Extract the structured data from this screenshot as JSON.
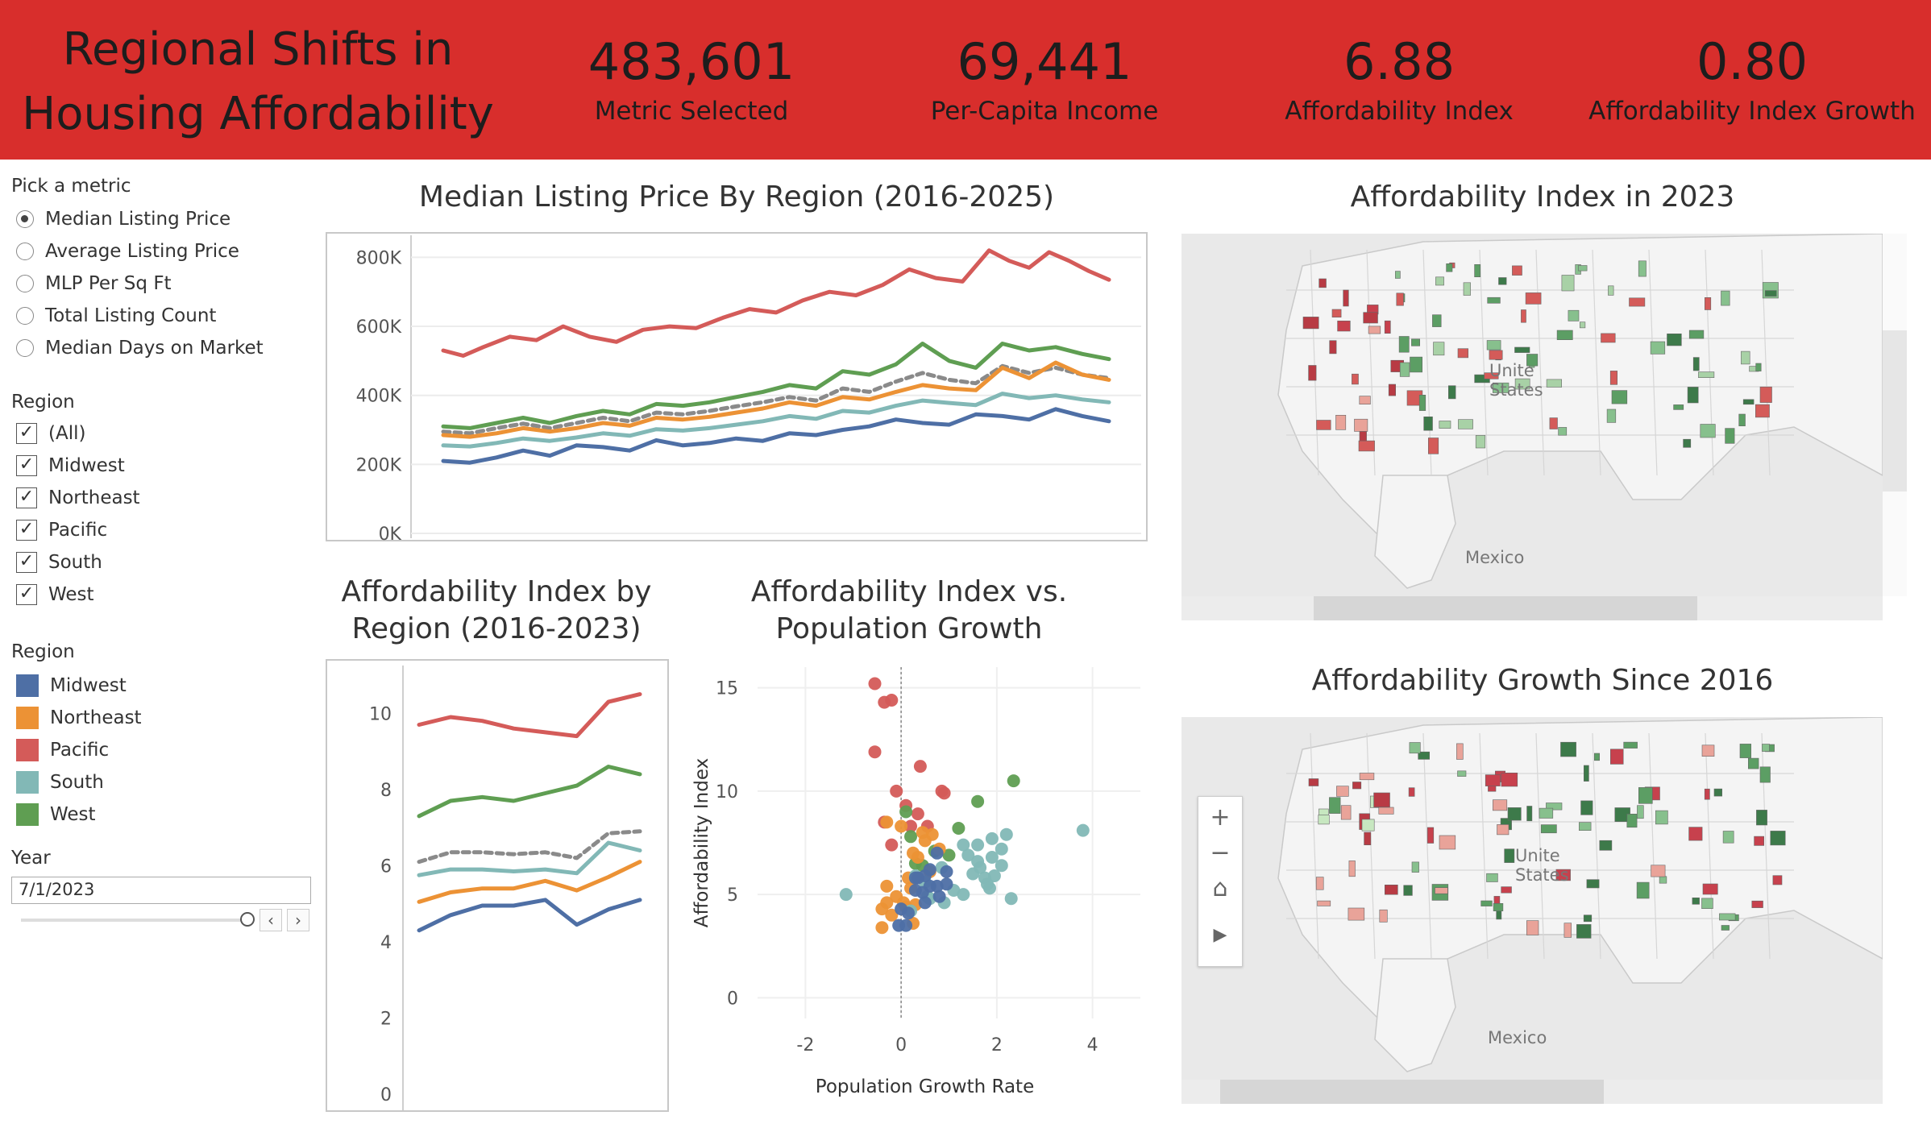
{
  "header": {
    "title": "Regional Shifts in Housing Affordability",
    "kpis": [
      {
        "value": "483,601",
        "label": "Metric Selected"
      },
      {
        "value": "69,441",
        "label": "Per-Capita Income"
      },
      {
        "value": "6.88",
        "label": "Affordability Index"
      },
      {
        "value": "0.80",
        "label": "Affordability Index Growth"
      }
    ]
  },
  "sidebar": {
    "metric_heading": "Pick a metric",
    "metrics": [
      "Median Listing Price",
      "Average Listing Price",
      "MLP Per Sq Ft",
      "Total Listing Count",
      "Median Days on Market"
    ],
    "selected_metric": "Median Listing Price",
    "region_filter_heading": "Region",
    "region_filter": [
      "(All)",
      "Midwest",
      "Northeast",
      "Pacific",
      "South",
      "West"
    ],
    "legend_heading": "Region",
    "legend": [
      {
        "name": "Midwest",
        "color": "#4e6fa5"
      },
      {
        "name": "Northeast",
        "color": "#ec9235"
      },
      {
        "name": "Pacific",
        "color": "#d45b59"
      },
      {
        "name": "South",
        "color": "#82b8b6"
      },
      {
        "name": "West",
        "color": "#5f9e52"
      }
    ],
    "year_heading": "Year",
    "year_value": "7/1/2023",
    "prev_icon": "‹",
    "next_icon": "›"
  },
  "maps": {
    "map1_title": "Affordability Index in 2023",
    "map2_title": "Affordability Growth Since 2016",
    "label_states": "Unite\nStates",
    "label_states_1": "Unite",
    "label_states_2": "States",
    "label_mexico": "Mexico",
    "zoom_in": "+",
    "zoom_out": "−",
    "home_icon": "⌂",
    "play_icon": "▶"
  },
  "chart_data": [
    {
      "type": "line",
      "title": "Median Listing Price By Region (2016-2025)",
      "ylim": [
        0,
        850000
      ],
      "yticks": [
        "0K",
        "200K",
        "400K",
        "600K",
        "800K"
      ],
      "ytick_values": [
        0,
        200000,
        400000,
        600000,
        800000
      ],
      "x_range": [
        0,
        1
      ],
      "series": [
        {
          "name": "Pacific",
          "color": "#d45b59",
          "x": [
            0,
            0.03,
            0.06,
            0.1,
            0.14,
            0.18,
            0.22,
            0.26,
            0.3,
            0.34,
            0.38,
            0.42,
            0.46,
            0.5,
            0.54,
            0.58,
            0.62,
            0.66,
            0.7,
            0.74,
            0.78,
            0.82,
            0.85,
            0.88,
            0.91,
            0.94,
            0.97,
            1.0
          ],
          "y": [
            530000,
            515000,
            540000,
            570000,
            560000,
            600000,
            570000,
            555000,
            590000,
            600000,
            595000,
            625000,
            650000,
            640000,
            675000,
            700000,
            690000,
            720000,
            765000,
            740000,
            730000,
            820000,
            790000,
            770000,
            815000,
            790000,
            760000,
            735000
          ]
        },
        {
          "name": "West",
          "color": "#5f9e52",
          "x": [
            0,
            0.04,
            0.08,
            0.12,
            0.16,
            0.2,
            0.24,
            0.28,
            0.32,
            0.36,
            0.4,
            0.44,
            0.48,
            0.52,
            0.56,
            0.6,
            0.64,
            0.68,
            0.72,
            0.76,
            0.8,
            0.84,
            0.88,
            0.92,
            0.96,
            1.0
          ],
          "y": [
            310000,
            305000,
            320000,
            335000,
            320000,
            340000,
            355000,
            345000,
            375000,
            370000,
            380000,
            395000,
            410000,
            430000,
            420000,
            470000,
            460000,
            490000,
            550000,
            500000,
            480000,
            550000,
            530000,
            540000,
            520000,
            505000
          ]
        },
        {
          "name": "All",
          "color": "#8a8a8a",
          "dashed": true,
          "x": [
            0,
            0.04,
            0.08,
            0.12,
            0.16,
            0.2,
            0.24,
            0.28,
            0.32,
            0.36,
            0.4,
            0.44,
            0.48,
            0.52,
            0.56,
            0.6,
            0.64,
            0.68,
            0.72,
            0.76,
            0.8,
            0.84,
            0.88,
            0.92,
            0.96,
            1.0
          ],
          "y": [
            295000,
            290000,
            305000,
            318000,
            305000,
            320000,
            335000,
            325000,
            350000,
            345000,
            355000,
            368000,
            380000,
            395000,
            385000,
            420000,
            410000,
            440000,
            465000,
            445000,
            435000,
            485000,
            465000,
            480000,
            460000,
            450000
          ]
        },
        {
          "name": "Northeast",
          "color": "#ec9235",
          "x": [
            0,
            0.04,
            0.08,
            0.12,
            0.16,
            0.2,
            0.24,
            0.28,
            0.32,
            0.36,
            0.4,
            0.44,
            0.48,
            0.52,
            0.56,
            0.6,
            0.64,
            0.68,
            0.72,
            0.76,
            0.8,
            0.84,
            0.88,
            0.92,
            0.96,
            1.0
          ],
          "y": [
            285000,
            280000,
            290000,
            305000,
            295000,
            305000,
            320000,
            312000,
            335000,
            330000,
            338000,
            350000,
            362000,
            380000,
            370000,
            395000,
            388000,
            410000,
            430000,
            420000,
            415000,
            480000,
            450000,
            495000,
            460000,
            445000
          ]
        },
        {
          "name": "South",
          "color": "#82b8b6",
          "x": [
            0,
            0.04,
            0.08,
            0.12,
            0.16,
            0.2,
            0.24,
            0.28,
            0.32,
            0.36,
            0.4,
            0.44,
            0.48,
            0.52,
            0.56,
            0.6,
            0.64,
            0.68,
            0.72,
            0.76,
            0.8,
            0.84,
            0.88,
            0.92,
            0.96,
            1.0
          ],
          "y": [
            255000,
            252000,
            262000,
            275000,
            268000,
            278000,
            290000,
            283000,
            302000,
            298000,
            305000,
            315000,
            325000,
            340000,
            332000,
            355000,
            350000,
            370000,
            385000,
            378000,
            372000,
            405000,
            392000,
            400000,
            388000,
            380000
          ]
        },
        {
          "name": "Midwest",
          "color": "#4e6fa5",
          "x": [
            0,
            0.04,
            0.08,
            0.12,
            0.16,
            0.2,
            0.24,
            0.28,
            0.32,
            0.36,
            0.4,
            0.44,
            0.48,
            0.52,
            0.56,
            0.6,
            0.64,
            0.68,
            0.72,
            0.76,
            0.8,
            0.84,
            0.88,
            0.92,
            0.96,
            1.0
          ],
          "y": [
            210000,
            205000,
            220000,
            240000,
            225000,
            255000,
            250000,
            240000,
            270000,
            255000,
            262000,
            275000,
            268000,
            290000,
            285000,
            300000,
            310000,
            330000,
            320000,
            315000,
            345000,
            340000,
            330000,
            360000,
            340000,
            325000
          ]
        }
      ]
    },
    {
      "type": "line",
      "title": "Affordability Index by Region (2016-2023)",
      "ylim": [
        0,
        11
      ],
      "yticks": [
        "0",
        "2",
        "4",
        "6",
        "8",
        "10"
      ],
      "ytick_values": [
        0,
        2,
        4,
        6,
        8,
        10
      ],
      "x": [
        2016,
        2017,
        2018,
        2019,
        2020,
        2021,
        2022,
        2023
      ],
      "series": [
        {
          "name": "Pacific",
          "color": "#d45b59",
          "values": [
            9.7,
            9.9,
            9.8,
            9.6,
            9.5,
            9.4,
            10.3,
            10.5
          ]
        },
        {
          "name": "West",
          "color": "#5f9e52",
          "values": [
            7.3,
            7.7,
            7.8,
            7.7,
            7.9,
            8.1,
            8.6,
            8.4
          ]
        },
        {
          "name": "All",
          "color": "#8a8a8a",
          "dashed": true,
          "values": [
            6.1,
            6.35,
            6.35,
            6.3,
            6.35,
            6.2,
            6.85,
            6.9
          ]
        },
        {
          "name": "South",
          "color": "#82b8b6",
          "values": [
            5.75,
            5.9,
            5.9,
            5.85,
            5.9,
            5.8,
            6.6,
            6.4
          ]
        },
        {
          "name": "Northeast",
          "color": "#ec9235",
          "values": [
            5.05,
            5.3,
            5.4,
            5.4,
            5.6,
            5.35,
            5.7,
            6.1
          ]
        },
        {
          "name": "Midwest",
          "color": "#4e6fa5",
          "values": [
            4.3,
            4.7,
            4.95,
            4.95,
            5.1,
            4.45,
            4.85,
            5.1
          ]
        }
      ]
    },
    {
      "type": "scatter",
      "title": "Affordability Index vs. Population Growth",
      "xlabel": "Population Growth Rate",
      "ylabel": "Affordability Index",
      "xlim": [
        -3,
        5
      ],
      "ylim": [
        -1,
        16
      ],
      "xticks": [
        "-2",
        "0",
        "2",
        "4"
      ],
      "xtick_values": [
        -2,
        0,
        2,
        4
      ],
      "yticks": [
        "0",
        "5",
        "10",
        "15"
      ],
      "ytick_values": [
        0,
        5,
        10,
        15
      ],
      "series": [
        {
          "name": "Pacific",
          "color": "#d45b59",
          "points": [
            [
              -0.55,
              15.2
            ],
            [
              -0.35,
              14.3
            ],
            [
              -0.2,
              14.4
            ],
            [
              -0.55,
              11.9
            ],
            [
              0.4,
              11.2
            ],
            [
              0.85,
              10.0
            ],
            [
              0.9,
              9.9
            ],
            [
              -0.1,
              10.0
            ],
            [
              0.1,
              9.3
            ],
            [
              0.35,
              8.9
            ],
            [
              -0.35,
              8.5
            ],
            [
              0.55,
              8.3
            ],
            [
              0.2,
              8.3
            ],
            [
              -0.2,
              7.4
            ]
          ]
        },
        {
          "name": "West",
          "color": "#5f9e52",
          "points": [
            [
              2.35,
              10.5
            ],
            [
              1.6,
              9.5
            ],
            [
              0.1,
              9.0
            ],
            [
              1.2,
              8.2
            ],
            [
              0.2,
              7.8
            ],
            [
              0.7,
              7.1
            ],
            [
              1.0,
              6.9
            ],
            [
              0.3,
              6.5
            ],
            [
              0.45,
              6.4
            ]
          ]
        },
        {
          "name": "Northeast",
          "color": "#ec9235",
          "points": [
            [
              -0.3,
              8.5
            ],
            [
              0.0,
              8.3
            ],
            [
              0.45,
              8.0
            ],
            [
              0.65,
              7.9
            ],
            [
              0.5,
              7.6
            ],
            [
              0.8,
              7.2
            ],
            [
              0.25,
              7.0
            ],
            [
              0.35,
              6.8
            ],
            [
              0.6,
              6.1
            ],
            [
              0.15,
              5.8
            ],
            [
              0.2,
              5.3
            ],
            [
              -0.3,
              5.4
            ],
            [
              -0.1,
              4.9
            ],
            [
              0.05,
              4.6
            ],
            [
              -0.3,
              4.6
            ],
            [
              0.1,
              4.4
            ],
            [
              -0.4,
              4.3
            ],
            [
              -0.2,
              4.0
            ],
            [
              -0.4,
              3.4
            ],
            [
              0.25,
              3.6
            ],
            [
              0.3,
              4.5
            ]
          ]
        },
        {
          "name": "South",
          "color": "#82b8b6",
          "points": [
            [
              3.8,
              8.1
            ],
            [
              2.2,
              7.9
            ],
            [
              1.9,
              7.7
            ],
            [
              1.6,
              7.4
            ],
            [
              1.3,
              7.4
            ],
            [
              2.1,
              7.2
            ],
            [
              1.9,
              6.8
            ],
            [
              1.4,
              6.9
            ],
            [
              2.1,
              6.4
            ],
            [
              1.65,
              6.3
            ],
            [
              1.5,
              6.0
            ],
            [
              1.95,
              5.9
            ],
            [
              1.75,
              5.8
            ],
            [
              0.85,
              6.3
            ],
            [
              0.5,
              5.6
            ],
            [
              1.1,
              5.2
            ],
            [
              1.8,
              5.5
            ],
            [
              1.3,
              5.0
            ],
            [
              2.3,
              4.8
            ],
            [
              1.85,
              5.3
            ],
            [
              0.6,
              4.8
            ],
            [
              0.9,
              4.6
            ],
            [
              0.2,
              4.2
            ],
            [
              -1.15,
              5.0
            ],
            [
              0.3,
              5.9
            ],
            [
              0.55,
              4.9
            ],
            [
              1.6,
              6.6
            ]
          ]
        },
        {
          "name": "Midwest",
          "color": "#4e6fa5",
          "points": [
            [
              0.75,
              7.0
            ],
            [
              0.95,
              6.1
            ],
            [
              0.6,
              6.2
            ],
            [
              0.5,
              5.9
            ],
            [
              0.35,
              5.8
            ],
            [
              0.6,
              5.4
            ],
            [
              0.75,
              5.4
            ],
            [
              0.95,
              5.5
            ],
            [
              0.3,
              5.2
            ],
            [
              0.8,
              4.9
            ],
            [
              0.5,
              4.6
            ],
            [
              0.0,
              4.3
            ],
            [
              0.15,
              4.1
            ],
            [
              0.3,
              5.8
            ],
            [
              -0.05,
              3.5
            ],
            [
              0.1,
              3.5
            ],
            [
              0.45,
              5.1
            ]
          ]
        }
      ]
    }
  ]
}
